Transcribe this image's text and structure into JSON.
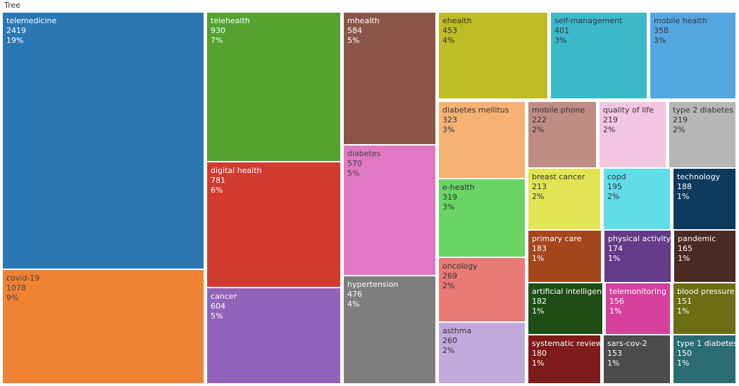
{
  "page": {
    "title": "Tree"
  },
  "chart_data": {
    "type": "treemap",
    "title": "Tree",
    "items": [
      {
        "label": "telemedicine",
        "value": 2419,
        "percent": "19%",
        "color": "#2b77b4",
        "text_color": "#ffffff"
      },
      {
        "label": "covid-19",
        "value": 1078,
        "percent": "9%",
        "color": "#f08233",
        "text_color": "#444444"
      },
      {
        "label": "telehealth",
        "value": 930,
        "percent": "7%",
        "color": "#55a231",
        "text_color": "#ffffff"
      },
      {
        "label": "digital health",
        "value": 781,
        "percent": "6%",
        "color": "#d33a30",
        "text_color": "#ffffff"
      },
      {
        "label": "cancer",
        "value": 604,
        "percent": "5%",
        "color": "#9263ba",
        "text_color": "#ffffff"
      },
      {
        "label": "mhealth",
        "value": 584,
        "percent": "5%",
        "color": "#8b5449",
        "text_color": "#ffffff"
      },
      {
        "label": "diabetes",
        "value": 570,
        "percent": "5%",
        "color": "#e178c3",
        "text_color": "#444444"
      },
      {
        "label": "hypertension",
        "value": 476,
        "percent": "4%",
        "color": "#7e7e7e",
        "text_color": "#ffffff"
      },
      {
        "label": "ehealth",
        "value": 453,
        "percent": "4%",
        "color": "#bdbd26",
        "text_color": "#333333"
      },
      {
        "label": "self-management",
        "value": 401,
        "percent": "3%",
        "color": "#3cb9cb",
        "text_color": "#333333"
      },
      {
        "label": "mobile health",
        "value": 358,
        "percent": "3%",
        "color": "#55a7e1",
        "text_color": "#333333"
      },
      {
        "label": "diabetes mellitus",
        "value": 323,
        "percent": "3%",
        "color": "#f5b273",
        "text_color": "#333333"
      },
      {
        "label": "e-health",
        "value": 319,
        "percent": "3%",
        "color": "#6ad565",
        "text_color": "#333333"
      },
      {
        "label": "oncology",
        "value": 269,
        "percent": "2%",
        "color": "#e97a76",
        "text_color": "#333333"
      },
      {
        "label": "asthma",
        "value": 260,
        "percent": "2%",
        "color": "#c2a9dc",
        "text_color": "#333333"
      },
      {
        "label": "mobile phone",
        "value": 222,
        "percent": "2%",
        "color": "#bf8d84",
        "text_color": "#333333"
      },
      {
        "label": "quality of life",
        "value": 219,
        "percent": "2%",
        "color": "#f3c5e3",
        "text_color": "#333333"
      },
      {
        "label": "type 2 diabetes",
        "value": 219,
        "percent": "2%",
        "color": "#b6b6b6",
        "text_color": "#333333"
      },
      {
        "label": "breast cancer",
        "value": 213,
        "percent": "2%",
        "color": "#e2e456",
        "text_color": "#333333"
      },
      {
        "label": "copd",
        "value": 195,
        "percent": "2%",
        "color": "#61dde9",
        "text_color": "#333333"
      },
      {
        "label": "technology",
        "value": 188,
        "percent": "1%",
        "color": "#0e3b5d",
        "text_color": "#ffffff"
      },
      {
        "label": "primary care",
        "value": 183,
        "percent": "1%",
        "color": "#a4461c",
        "text_color": "#ffffff"
      },
      {
        "label": "physical activity",
        "value": 174,
        "percent": "1%",
        "color": "#633b88",
        "text_color": "#ffffff"
      },
      {
        "label": "pandemic",
        "value": 165,
        "percent": "1%",
        "color": "#4a2a23",
        "text_color": "#ffffff"
      },
      {
        "label": "artificial intelligence",
        "value": 182,
        "percent": "1%",
        "color": "#1f4d16",
        "text_color": "#ffffff"
      },
      {
        "label": "telemonitoring",
        "value": 156,
        "percent": "1%",
        "color": "#d5409d",
        "text_color": "#ffffff"
      },
      {
        "label": "blood pressure",
        "value": 151,
        "percent": "1%",
        "color": "#6c6d14",
        "text_color": "#ffffff"
      },
      {
        "label": "systematic review",
        "value": 180,
        "percent": "1%",
        "color": "#7d1b1b",
        "text_color": "#ffffff"
      },
      {
        "label": "sars-cov-2",
        "value": 153,
        "percent": "1%",
        "color": "#4b4b4b",
        "text_color": "#ffffff"
      },
      {
        "label": "type 1 diabetes",
        "value": 150,
        "percent": "1%",
        "color": "#2b6c73",
        "text_color": "#ffffff"
      }
    ]
  }
}
